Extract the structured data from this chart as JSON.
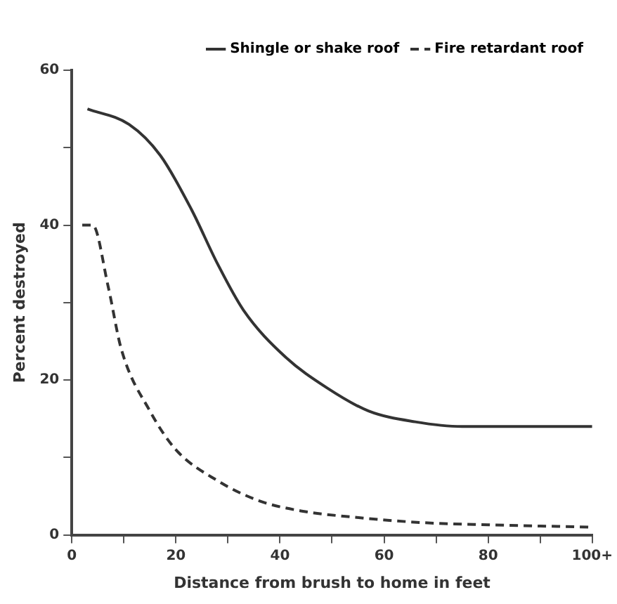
{
  "chart_data": {
    "type": "line",
    "xlabel": "Distance from brush to home in feet",
    "ylabel": "Percent destroyed",
    "xlim": [
      0,
      100
    ],
    "ylim": [
      0,
      60
    ],
    "xticks": [
      0,
      {
        "value": 10,
        "label": null
      },
      20,
      {
        "value": 30,
        "label": null
      },
      40,
      {
        "value": 50,
        "label": null
      },
      60,
      {
        "value": 70,
        "label": null
      },
      80,
      {
        "value": 90,
        "label": null
      },
      {
        "value": 100,
        "label": "100+"
      }
    ],
    "yticks": [
      0,
      {
        "value": 10,
        "label": null
      },
      20,
      {
        "value": 30,
        "label": null
      },
      40,
      {
        "value": 50,
        "label": null
      },
      60
    ],
    "grid": false,
    "legend": "top right",
    "marker": "none",
    "series": [
      {
        "name": "Shingle or shake roof",
        "color": "#333333",
        "line_style": "solid",
        "x": [
          3,
          11,
          17,
          23,
          28,
          33,
          41,
          49,
          57,
          66,
          75,
          100
        ],
        "values": [
          55,
          53,
          49,
          42,
          35,
          29,
          23,
          19,
          16,
          14.6,
          14,
          14
        ]
      },
      {
        "name": "Fire retardant roof",
        "color": "#333333",
        "line_style": "dashed",
        "x": [
          2,
          4,
          7,
          9.5,
          15,
          20,
          28,
          36,
          44,
          54,
          67,
          80,
          100
        ],
        "values": [
          40,
          40,
          32,
          24,
          16,
          11,
          7,
          4.4,
          3.1,
          2.3,
          1.6,
          1.3,
          1
        ]
      }
    ]
  }
}
